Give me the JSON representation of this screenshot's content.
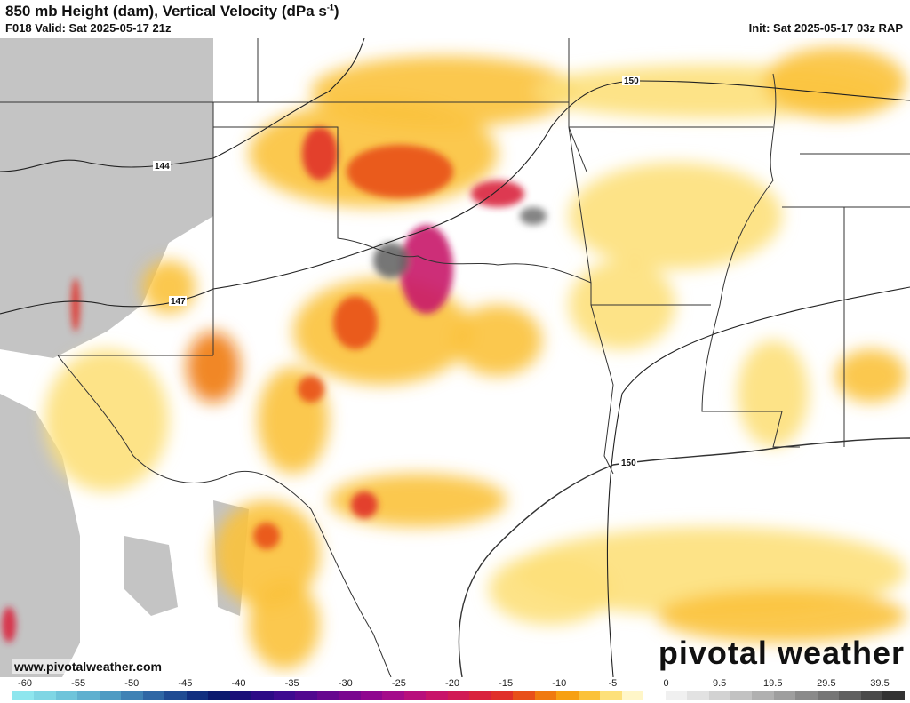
{
  "header": {
    "title_main": "850 mb Height (dam), Vertical Velocity (dPa s",
    "title_sup": "-1",
    "title_end": ")",
    "valid": "F018 Valid: Sat 2025-05-17 21z",
    "init": "Init: Sat 2025-05-17 03z RAP"
  },
  "map": {
    "contour_labels": [
      "144",
      "147",
      "150",
      "150"
    ],
    "colors": {
      "background": "#ffffff",
      "terrain_mask": "#c4c4c4",
      "borders": "#333333",
      "contours": "#222222"
    }
  },
  "footer": {
    "url": "www.pivotalweather.com",
    "logo": "pivotal weather"
  },
  "colorbar": {
    "ticks": [
      "-60",
      "-55",
      "-50",
      "-45",
      "-40",
      "-35",
      "-30",
      "-25",
      "-20",
      "-15",
      "-10",
      "-5",
      "0",
      "9.5",
      "19.5",
      "29.5",
      "39.5"
    ],
    "colors": [
      "#8ee6ee",
      "#7fd6e4",
      "#6ec4da",
      "#5fb0cf",
      "#4e9bc3",
      "#3f82b5",
      "#2f67a5",
      "#1f4b93",
      "#112f80",
      "#0b1a6e",
      "#1a0f78",
      "#2c0a86",
      "#3e0a90",
      "#51088f",
      "#66078f",
      "#7a068f",
      "#8f068f",
      "#a40b8a",
      "#b80f7c",
      "#c8146a",
      "#d11a55",
      "#d9223e",
      "#e0302a",
      "#e8501a",
      "#f07a10",
      "#f7a012",
      "#fbc23a",
      "#fde07a",
      "#fff6c8",
      "#ffffff",
      "#f0f0f0",
      "#e2e2e2",
      "#d2d2d2",
      "#c2c2c2",
      "#b0b0b0",
      "#9e9e9e",
      "#8a8a8a",
      "#767676",
      "#606060",
      "#4a4a4a",
      "#333333"
    ]
  }
}
